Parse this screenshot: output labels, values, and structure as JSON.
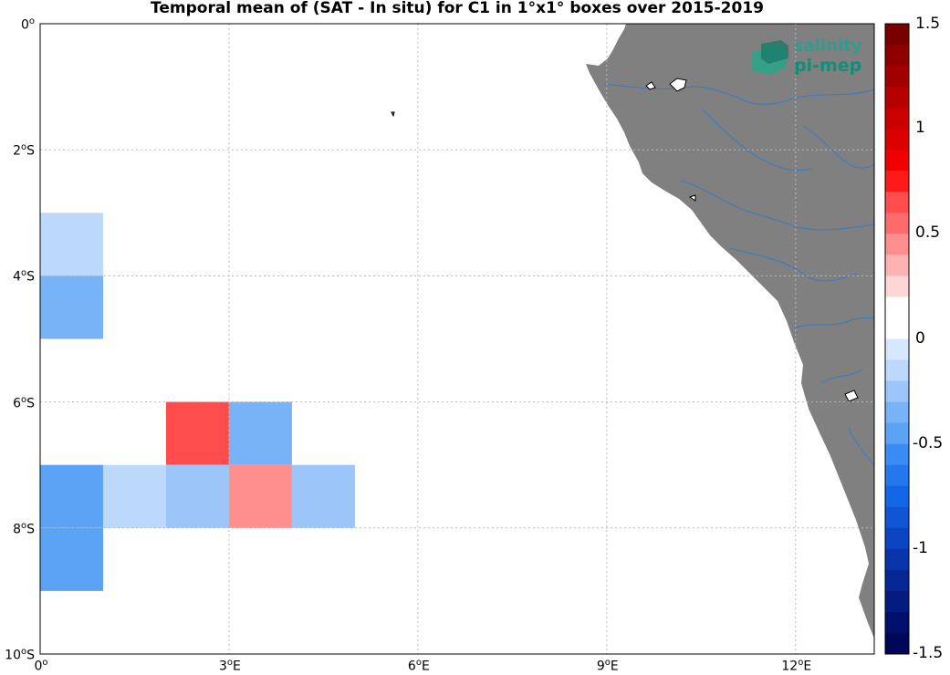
{
  "title": "Temporal mean of (SAT - In situ) for C1 in 1°x1° boxes over 2015-2019",
  "logo": {
    "line1": "salinity",
    "line2": "pi-mep"
  },
  "colors": {
    "land": "#808080",
    "river": "#3a7cc0",
    "grid": "#b8b8b8"
  },
  "chart_data": {
    "type": "heatmap",
    "lon_range": [
      0,
      13.25
    ],
    "lat_range": [
      -10,
      0
    ],
    "lon_ticks": [
      0,
      3,
      6,
      9,
      12
    ],
    "lat_ticks": [
      0,
      -2,
      -4,
      -6,
      -8,
      -10
    ],
    "lon_tick_labels": [
      {
        "num": "0",
        "sup": "o"
      },
      {
        "num": "3",
        "sup": "o",
        "dir": "E"
      },
      {
        "num": "6",
        "sup": "o",
        "dir": "E"
      },
      {
        "num": "9",
        "sup": "o",
        "dir": "E"
      },
      {
        "num": "12",
        "sup": "o",
        "dir": "E"
      }
    ],
    "lat_tick_labels": [
      {
        "num": "0",
        "sup": "o"
      },
      {
        "num": "2",
        "sup": "o",
        "dir": "S"
      },
      {
        "num": "4",
        "sup": "o",
        "dir": "S"
      },
      {
        "num": "6",
        "sup": "o",
        "dir": "S"
      },
      {
        "num": "8",
        "sup": "o",
        "dir": "S"
      },
      {
        "num": "10",
        "sup": "o",
        "dir": "S"
      }
    ],
    "grid": true,
    "cells": [
      {
        "lon": 0,
        "lat": -3,
        "value": -0.1
      },
      {
        "lon": 0,
        "lat": -4,
        "value": -0.35
      },
      {
        "lon": 2,
        "lat": -6,
        "value": 0.65
      },
      {
        "lon": 3,
        "lat": -6,
        "value": -0.35
      },
      {
        "lon": 0,
        "lat": -7,
        "value": -0.45
      },
      {
        "lon": 0,
        "lat": -8,
        "value": -0.45
      },
      {
        "lon": 1,
        "lat": -7,
        "value": -0.1
      },
      {
        "lon": 2,
        "lat": -7,
        "value": -0.2
      },
      {
        "lon": 3,
        "lat": -7,
        "value": 0.5
      },
      {
        "lon": 4,
        "lat": -7,
        "value": -0.2
      }
    ],
    "colorbar": {
      "min": -1.5,
      "max": 1.5,
      "step": 0.1,
      "tick_values": [
        1.5,
        1,
        0.5,
        0,
        -0.5,
        -1,
        -1.5
      ],
      "tick_labels": [
        "1.5",
        "1",
        "0.5",
        "0",
        "-0.5",
        "-1",
        "-1.5"
      ],
      "colors_top_to_bottom": [
        "#7a0000",
        "#8e0000",
        "#a20000",
        "#b60000",
        "#ca0000",
        "#dd0000",
        "#f00000",
        "#ff1a1a",
        "#ff4c4c",
        "#ff6b6b",
        "#ff8e8e",
        "#ffb2b2",
        "#ffd6d6",
        "#ffffff",
        "#ffffff",
        "#d8e8fc",
        "#bcd8fa",
        "#9cc6f9",
        "#78b2f7",
        "#5aa3f5",
        "#3b8cf2",
        "#2478ee",
        "#1566e6",
        "#0f55d4",
        "#0b44c0",
        "#0835aa",
        "#062794",
        "#041b80",
        "#02106c",
        "#000758"
      ]
    }
  }
}
